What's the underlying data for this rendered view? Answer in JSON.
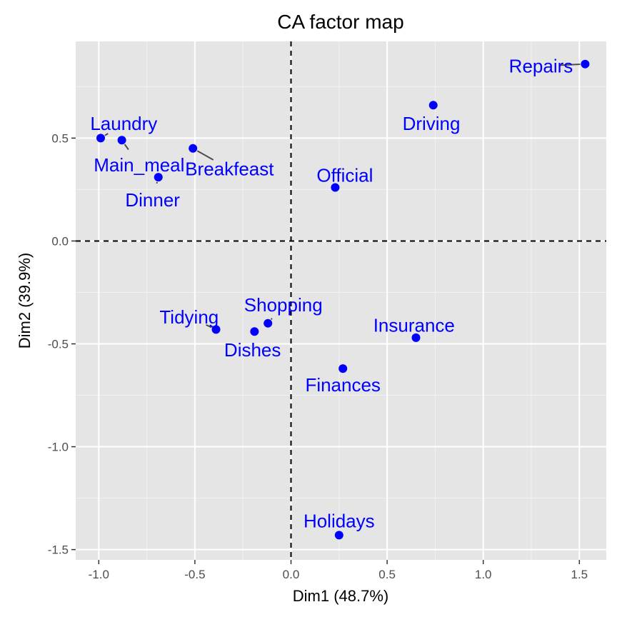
{
  "chart_data": {
    "type": "scatter",
    "title": "CA factor map",
    "xlabel": "Dim1 (48.7%)",
    "ylabel": "Dim2 (39.9%)",
    "xlim": [
      -1.12,
      1.64
    ],
    "ylim": [
      -1.55,
      0.97
    ],
    "x_ticks": [
      -1.0,
      -0.5,
      0.0,
      0.5,
      1.0,
      1.5
    ],
    "x_tick_labels": [
      "-1.0",
      "-0.5",
      "0.0",
      "0.5",
      "1.0",
      "1.5"
    ],
    "y_ticks": [
      -1.5,
      -1.0,
      -0.5,
      0.0,
      0.5
    ],
    "y_tick_labels": [
      "-1.5",
      "-1.0",
      "-0.5",
      "0.0",
      "0.5"
    ],
    "grid": true,
    "reference_lines": {
      "x": 0,
      "y": 0,
      "style": "dashed"
    },
    "point_color": "#0000ff",
    "label_color": "#0000ff",
    "background_color": "#e5e5e5",
    "points": [
      {
        "label": "Laundry",
        "x": -0.99,
        "y": 0.5,
        "label_x": -0.87,
        "label_y": 0.57
      },
      {
        "label": "Main_meal",
        "x": -0.88,
        "y": 0.49,
        "label_x": -0.79,
        "label_y": 0.37
      },
      {
        "label": "Dinner",
        "x": -0.69,
        "y": 0.31,
        "label_x": -0.72,
        "label_y": 0.2
      },
      {
        "label": "Breakfeast",
        "x": -0.51,
        "y": 0.45,
        "label_x": -0.32,
        "label_y": 0.35
      },
      {
        "label": "Tidying",
        "x": -0.39,
        "y": -0.43,
        "label_x": -0.53,
        "label_y": -0.37
      },
      {
        "label": "Dishes",
        "x": -0.19,
        "y": -0.44,
        "label_x": -0.2,
        "label_y": -0.53
      },
      {
        "label": "Shopping",
        "x": -0.12,
        "y": -0.4,
        "label_x": -0.04,
        "label_y": -0.31
      },
      {
        "label": "Official",
        "x": 0.23,
        "y": 0.26,
        "label_x": 0.28,
        "label_y": 0.32
      },
      {
        "label": "Driving",
        "x": 0.74,
        "y": 0.66,
        "label_x": 0.73,
        "label_y": 0.57
      },
      {
        "label": "Insurance",
        "x": 0.65,
        "y": -0.47,
        "label_x": 0.64,
        "label_y": -0.41
      },
      {
        "label": "Finances",
        "x": 0.27,
        "y": -0.62,
        "label_x": 0.27,
        "label_y": -0.7
      },
      {
        "label": "Repairs",
        "x": 1.53,
        "y": 0.86,
        "label_x": 1.3,
        "label_y": 0.85
      },
      {
        "label": "Holidays",
        "x": 0.25,
        "y": -1.43,
        "label_x": 0.25,
        "label_y": -1.36
      }
    ]
  }
}
